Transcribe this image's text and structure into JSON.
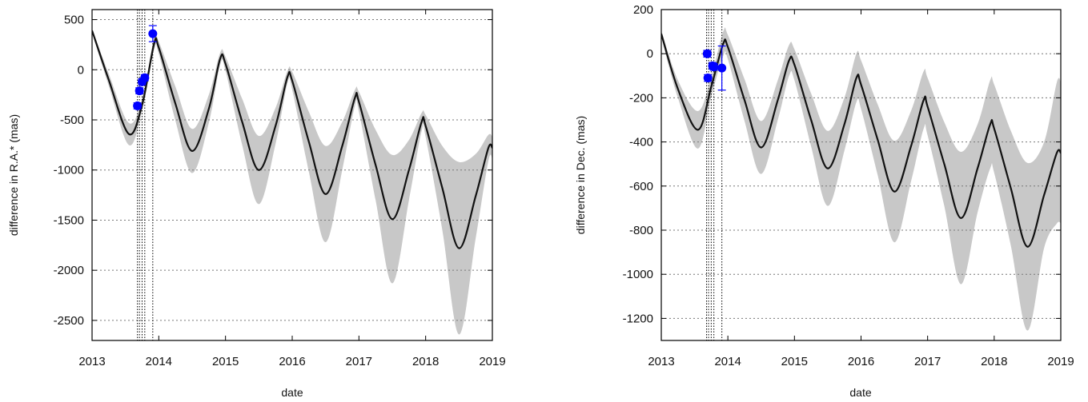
{
  "chart_data": [
    {
      "type": "line",
      "title": "",
      "xlabel": "date",
      "ylabel": "difference in R.A.* (mas)",
      "xlim": [
        2013,
        2019
      ],
      "ylim": [
        -2700,
        600
      ],
      "x_ticks": [
        "2013",
        "2014",
        "2015",
        "2016",
        "2017",
        "2018",
        "2019"
      ],
      "y_ticks": [
        "500",
        "0",
        "-500",
        "-1000",
        "-1500",
        "-2000",
        "-2500"
      ],
      "grid": "horizontal dotted",
      "vertical_markers": [
        2013.68,
        2013.71,
        2013.75,
        2013.79,
        2013.91
      ],
      "band_color": "#c8c8c8",
      "line_color": "#111111",
      "point_color": "#0000ff",
      "series": [
        {
          "x": [
            2013.0,
            2013.25,
            2013.55,
            2013.75,
            2013.93,
            2014.0,
            2014.25,
            2014.5,
            2014.75,
            2014.92,
            2015.0,
            2015.25,
            2015.5,
            2015.75,
            2015.93,
            2016.0,
            2016.25,
            2016.5,
            2016.75,
            2016.94,
            2017.0,
            2017.25,
            2017.5,
            2017.75,
            2017.94,
            2018.0,
            2018.25,
            2018.5,
            2018.75,
            2018.94,
            2019.0
          ],
          "y": [
            390,
            -100,
            -640,
            -350,
            260,
            220,
            -340,
            -810,
            -390,
            110,
            60,
            -520,
            -1000,
            -560,
            -70,
            -110,
            -720,
            -1240,
            -760,
            -280,
            -320,
            -950,
            -1490,
            -1000,
            -520,
            -560,
            -1180,
            -1780,
            -1260,
            -780,
            -780
          ],
          "band_half_width": [
            20,
            60,
            110,
            60,
            60,
            60,
            170,
            220,
            140,
            60,
            70,
            230,
            340,
            180,
            60,
            90,
            300,
            480,
            240,
            80,
            100,
            350,
            640,
            300,
            90,
            110,
            420,
            860,
            420,
            130,
            110
          ]
        }
      ],
      "points": [
        {
          "x": 2013.68,
          "y": -360,
          "err": 30
        },
        {
          "x": 2013.71,
          "y": -210,
          "err": 30
        },
        {
          "x": 2013.75,
          "y": -120,
          "err": 30
        },
        {
          "x": 2013.79,
          "y": -80,
          "err": 30
        },
        {
          "x": 2013.91,
          "y": 360,
          "err": 80
        }
      ]
    },
    {
      "type": "line",
      "title": "",
      "xlabel": "date",
      "ylabel": "difference in Dec. (mas)",
      "xlim": [
        2013,
        2019
      ],
      "ylim": [
        -1300,
        200
      ],
      "x_ticks": [
        "2013",
        "2014",
        "2015",
        "2016",
        "2017",
        "2018",
        "2019"
      ],
      "y_ticks": [
        "200",
        "0",
        "-200",
        "-400",
        "-600",
        "-800",
        "-1000",
        "-1200"
      ],
      "grid": "horizontal dotted",
      "vertical_markers": [
        2013.68,
        2013.71,
        2013.75,
        2013.79,
        2013.91
      ],
      "band_color": "#c8c8c8",
      "line_color": "#111111",
      "point_color": "#0000ff",
      "series": [
        {
          "x": [
            2013.0,
            2013.25,
            2013.55,
            2013.75,
            2013.93,
            2014.0,
            2014.25,
            2014.5,
            2014.75,
            2014.92,
            2015.0,
            2015.25,
            2015.5,
            2015.75,
            2015.93,
            2016.0,
            2016.25,
            2016.5,
            2016.75,
            2016.94,
            2017.0,
            2017.25,
            2017.5,
            2017.75,
            2017.94,
            2018.0,
            2018.25,
            2018.5,
            2018.75,
            2018.94,
            2019.0
          ],
          "y": [
            90,
            -160,
            -345,
            -150,
            45,
            30,
            -210,
            -425,
            -210,
            -30,
            -50,
            -300,
            -520,
            -320,
            -110,
            -140,
            -390,
            -625,
            -420,
            -210,
            -240,
            -500,
            -745,
            -520,
            -320,
            -340,
            -610,
            -875,
            -640,
            -450,
            -450
          ],
          "band_half_width": [
            15,
            40,
            85,
            45,
            55,
            55,
            95,
            120,
            90,
            70,
            70,
            120,
            170,
            120,
            110,
            110,
            160,
            230,
            160,
            130,
            130,
            190,
            300,
            200,
            200,
            200,
            260,
            380,
            240,
            320,
            320
          ]
        }
      ],
      "points": [
        {
          "x": 2013.69,
          "y": 0,
          "err": 15
        },
        {
          "x": 2013.7,
          "y": -110,
          "err": 15
        },
        {
          "x": 2013.77,
          "y": -55,
          "err": 15
        },
        {
          "x": 2013.79,
          "y": -60,
          "err": 15
        },
        {
          "x": 2013.91,
          "y": -65,
          "err": 100
        }
      ]
    }
  ]
}
